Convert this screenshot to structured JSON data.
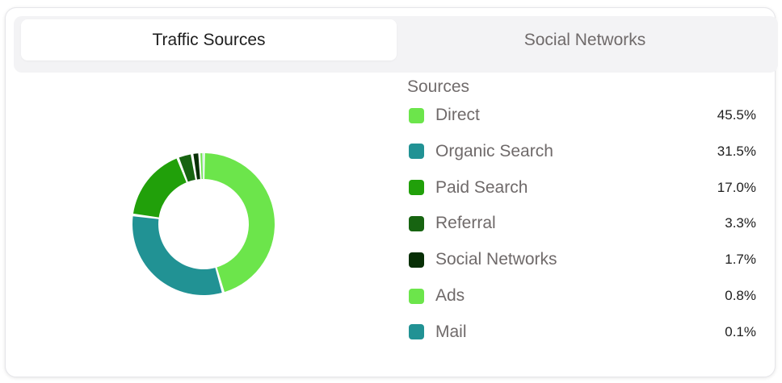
{
  "tabs": [
    {
      "label": "Traffic Sources",
      "active": true
    },
    {
      "label": "Social Networks",
      "active": false
    }
  ],
  "colors": {
    "card_border": "#e5e5e9",
    "tab_bar_bg": "#f3f3f5",
    "text_dark": "#1e1e1e",
    "text_muted": "#6f6a6a"
  },
  "chart_data": {
    "type": "pie",
    "variant": "donut",
    "legend_title": "Sources",
    "legend_position": "right",
    "categories": [
      "Direct",
      "Organic Search",
      "Paid Search",
      "Referral",
      "Social Networks",
      "Ads",
      "Mail"
    ],
    "values": [
      45.5,
      31.5,
      17.0,
      3.3,
      1.7,
      0.8,
      0.1
    ],
    "value_labels": [
      "45.5%",
      "31.5%",
      "17.0%",
      "3.3%",
      "1.7%",
      "0.8%",
      "0.1%"
    ],
    "colors": [
      "#6ce54b",
      "#219294",
      "#21a00a",
      "#176411",
      "#082f06",
      "#6ce54b",
      "#219294"
    ]
  }
}
